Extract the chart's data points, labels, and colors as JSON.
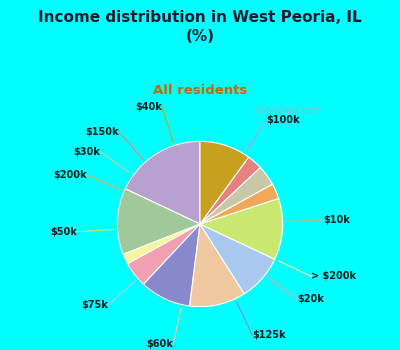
{
  "title": "Income distribution in West Peoria, IL\n(%)",
  "subtitle": "All residents",
  "title_color": "#1a1a2e",
  "subtitle_color": "#cc6600",
  "background_cyan": "#00ffff",
  "background_chart": "#d8efe0",
  "watermark": "ⓘ City-Data.com",
  "labels": [
    "$100k",
    "$10k",
    "> $200k",
    "$20k",
    "$125k",
    "$60k",
    "$75k",
    "$50k",
    "$200k",
    "$30k",
    "$150k",
    "$40k"
  ],
  "values": [
    18,
    13,
    2,
    5,
    10,
    11,
    9,
    12,
    3,
    4,
    3,
    10
  ],
  "colors": [
    "#b8a0d0",
    "#a0c898",
    "#f5f5a0",
    "#f0a0b0",
    "#8888cc",
    "#f0c8a0",
    "#a8c8f0",
    "#c8e870",
    "#f0a858",
    "#c8c8a8",
    "#e88080",
    "#c8a020"
  ],
  "startangle": 90,
  "figsize": [
    4.0,
    3.5
  ],
  "dpi": 100
}
